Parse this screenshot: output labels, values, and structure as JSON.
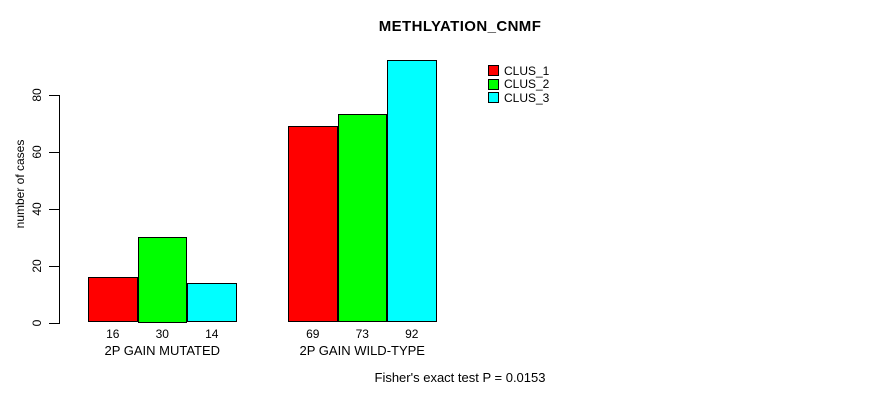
{
  "chart": {
    "title": "METHLYATION_CNMF",
    "ylabel": "number of cases",
    "footnote": "Fisher's exact test P = 0.0153"
  },
  "chart_data": {
    "type": "bar",
    "title": "METHLYATION_CNMF",
    "xlabel": "",
    "ylabel": "number of cases",
    "categories": [
      "2P GAIN MUTATED",
      "2P GAIN WILD-TYPE"
    ],
    "series": [
      {
        "name": "CLUS_1",
        "color": "#ff0000",
        "values": [
          16,
          69
        ]
      },
      {
        "name": "CLUS_2",
        "color": "#00ff00",
        "values": [
          30,
          73
        ]
      },
      {
        "name": "CLUS_3",
        "color": "#00ffff",
        "values": [
          14,
          92
        ]
      }
    ],
    "bar_value_labels": [
      [
        16,
        30,
        14
      ],
      [
        69,
        73,
        92
      ]
    ],
    "yticks": [
      0,
      20,
      40,
      60,
      80
    ],
    "ylim": [
      0,
      92
    ],
    "grid": false,
    "legend_position": "top-right",
    "annotation": "Fisher's exact test P = 0.0153"
  }
}
